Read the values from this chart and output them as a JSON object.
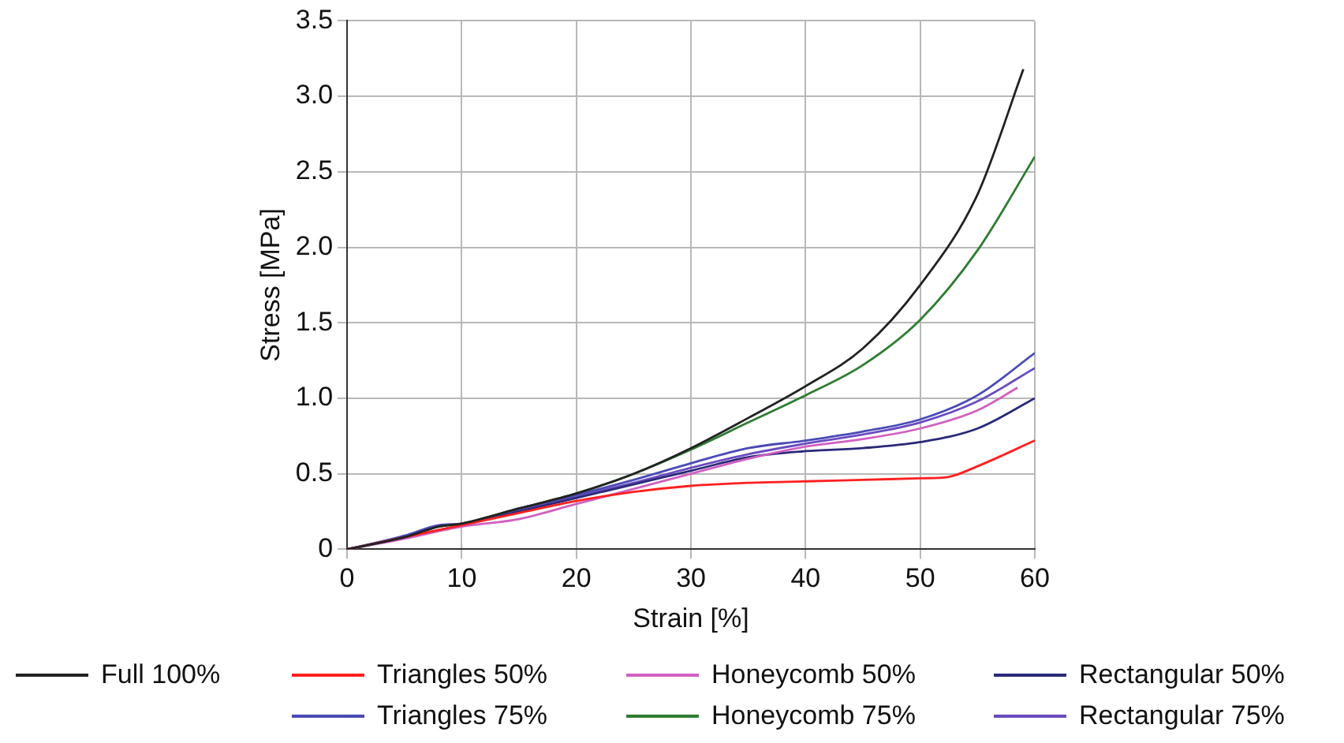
{
  "chart_data": {
    "type": "line",
    "xlabel": "Strain [%]",
    "ylabel": "Stress [MPa]",
    "xlim": [
      0,
      60
    ],
    "xticks": [
      0,
      10,
      20,
      30,
      40,
      50,
      60
    ],
    "ylim": [
      0,
      3.5
    ],
    "yticks": [
      0,
      0.5,
      {
        "value": 1,
        "label": "1.0"
      },
      1.5,
      {
        "value": 2,
        "label": "2.0"
      },
      2.5,
      {
        "value": 3,
        "label": "3.0"
      },
      3.5
    ],
    "grid": true,
    "legend": "bottom",
    "marker": "none",
    "line_style": "solid",
    "series": [
      {
        "name": "Full 100%",
        "color": "#222222",
        "x": [
          0,
          5,
          8,
          10,
          15,
          20,
          25,
          30,
          35,
          40,
          45,
          50,
          55,
          59
        ],
        "values": [
          0,
          0.08,
          0.15,
          0.17,
          0.27,
          0.37,
          0.5,
          0.67,
          0.87,
          1.08,
          1.33,
          1.75,
          2.35,
          3.18
        ]
      },
      {
        "name": "Triangles 50%",
        "color": "#ff2020",
        "x": [
          0,
          5,
          10,
          15,
          20,
          25,
          30,
          35,
          40,
          45,
          50,
          52.5,
          55,
          60
        ],
        "values": [
          0,
          0.08,
          0.16,
          0.24,
          0.32,
          0.38,
          0.42,
          0.44,
          0.45,
          0.46,
          0.47,
          0.48,
          0.55,
          0.72
        ]
      },
      {
        "name": "Triangles 75%",
        "color": "#4a4ab8",
        "x": [
          0,
          5,
          8,
          10,
          15,
          20,
          25,
          30,
          35,
          40,
          45,
          50,
          55,
          60
        ],
        "values": [
          0,
          0.09,
          0.16,
          0.17,
          0.27,
          0.36,
          0.46,
          0.57,
          0.67,
          0.72,
          0.78,
          0.86,
          1.02,
          1.3
        ]
      },
      {
        "name": "Honeycomb 50%",
        "color": "#d060c0",
        "x": [
          0,
          5,
          10,
          15,
          20,
          25,
          30,
          35,
          40,
          45,
          50,
          55,
          58.5
        ],
        "values": [
          0,
          0.07,
          0.15,
          0.2,
          0.3,
          0.4,
          0.5,
          0.6,
          0.68,
          0.73,
          0.8,
          0.92,
          1.07
        ]
      },
      {
        "name": "Honeycomb 75%",
        "color": "#2e7d32",
        "x": [
          0,
          5,
          8,
          10,
          15,
          20,
          25,
          30,
          35,
          40,
          45,
          50,
          55,
          60
        ],
        "values": [
          0,
          0.08,
          0.15,
          0.17,
          0.27,
          0.37,
          0.5,
          0.66,
          0.84,
          1.02,
          1.22,
          1.52,
          1.98,
          2.6
        ]
      },
      {
        "name": "Rectangular 50%",
        "color": "#2a2a78",
        "x": [
          0,
          5,
          10,
          15,
          20,
          25,
          30,
          35,
          40,
          45,
          50,
          55,
          60
        ],
        "values": [
          0,
          0.08,
          0.16,
          0.25,
          0.34,
          0.43,
          0.52,
          0.61,
          0.65,
          0.67,
          0.71,
          0.8,
          1.0
        ]
      },
      {
        "name": "Rectangular 75%",
        "color": "#6a4cc0",
        "x": [
          0,
          5,
          10,
          15,
          20,
          25,
          30,
          35,
          40,
          45,
          50,
          55,
          60
        ],
        "values": [
          0,
          0.08,
          0.16,
          0.26,
          0.35,
          0.44,
          0.54,
          0.63,
          0.7,
          0.76,
          0.84,
          0.98,
          1.2
        ]
      }
    ]
  }
}
